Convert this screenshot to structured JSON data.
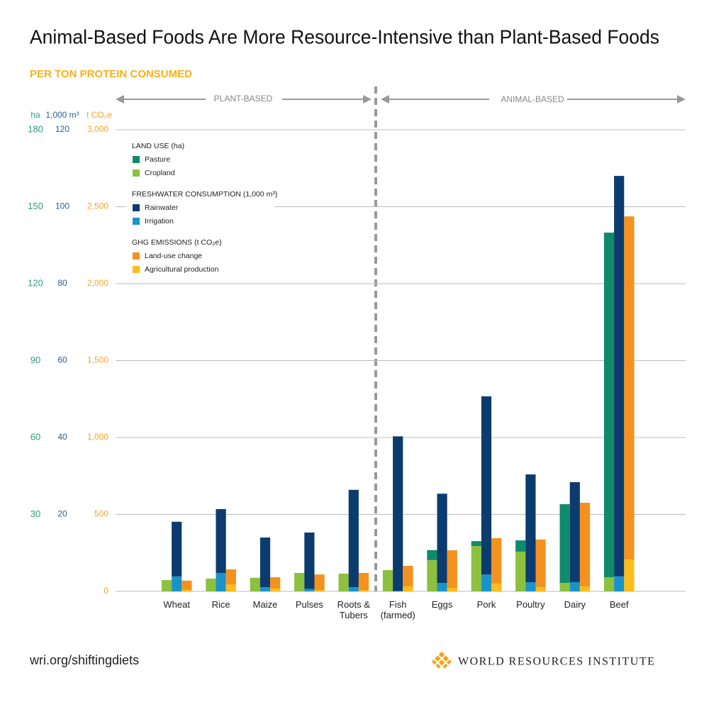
{
  "chart_data": {
    "type": "bar",
    "title": "Animal-Based Foods Are More Resource-Intensive than Plant-Based Foods",
    "subtitle": "PER TON PROTEIN CONSUMED",
    "sections": [
      {
        "label": "PLANT-BASED"
      },
      {
        "label": "ANIMAL-BASED"
      }
    ],
    "axis_units": {
      "y": "ha",
      "y2": "1,000 m³",
      "y3": "t CO₂e"
    },
    "categories": [
      "Wheat",
      "Rice",
      "Maize",
      "Pulses",
      "Roots & Tubers",
      "Fish (farmed)",
      "Eggs",
      "Pork",
      "Poultry",
      "Dairy",
      "Beef"
    ],
    "legend_groups": [
      {
        "title": "LAND USE (ha)",
        "axis": "y"
      },
      {
        "title": "FRESHWATER CONSUMPTION (1,000 m³)",
        "axis": "y2"
      },
      {
        "title": "GHG EMISSIONS (t CO₂e)",
        "axis": "y3"
      }
    ],
    "series": [
      {
        "name": "Cropland",
        "color": "#8dc03f",
        "axis": "y",
        "values": [
          4.4,
          5.0,
          5.3,
          7.2,
          6.9,
          8.3,
          12.2,
          17.7,
          15.5,
          3.3,
          5.5
        ]
      },
      {
        "name": "Pasture",
        "color": "#0f8b6c",
        "axis": "y",
        "values": [
          0,
          0,
          0,
          0,
          0,
          0,
          3.9,
          1.9,
          4.4,
          30.7,
          134.4
        ]
      },
      {
        "name": "Irrigation",
        "color": "#1a93c9",
        "axis": "y2",
        "values": [
          3.9,
          4.8,
          1.1,
          0.6,
          1.1,
          0.1,
          2.2,
          4.4,
          2.4,
          2.4,
          3.9
        ]
      },
      {
        "name": "Rainwater",
        "color": "#0c3b6e",
        "axis": "y2",
        "values": [
          14.2,
          16.6,
          12.9,
          14.7,
          25.3,
          40.2,
          23.2,
          46.3,
          28.0,
          26.0,
          104.1
        ]
      },
      {
        "name": "Agricultural production",
        "color": "#fdbd1a",
        "axis": "y3",
        "values": [
          10,
          46,
          18,
          9,
          9,
          32,
          23,
          51,
          28,
          32,
          207
        ]
      },
      {
        "name": "Land-use change",
        "color": "#f5911e",
        "axis": "y3",
        "values": [
          60,
          97,
          74,
          101,
          111,
          134,
          244,
          295,
          309,
          544,
          2230
        ]
      }
    ],
    "ylim": [
      0,
      180
    ],
    "yticks": [
      30,
      60,
      90,
      120,
      150,
      180
    ],
    "y2lim": [
      0,
      120
    ],
    "y2ticks": [
      20,
      40,
      60,
      80,
      100,
      120
    ],
    "y3lim": [
      0,
      3000
    ],
    "y3ticks": [
      0,
      500,
      {
        "value": 1000,
        "label": "1,000"
      },
      {
        "value": 1500,
        "label": "1,500"
      },
      {
        "value": 2000,
        "label": "2,000"
      },
      {
        "value": 2500,
        "label": "2,500"
      },
      {
        "value": 3000,
        "label": "3,000"
      }
    ],
    "axis_colors": {
      "y": "#2a9d7e",
      "y2": "#2b5f8f",
      "y3": "#f5a623"
    },
    "grid": true
  },
  "footer": {
    "url": "wri.org/shiftingdiets",
    "organization": "WORLD RESOURCES INSTITUTE"
  }
}
